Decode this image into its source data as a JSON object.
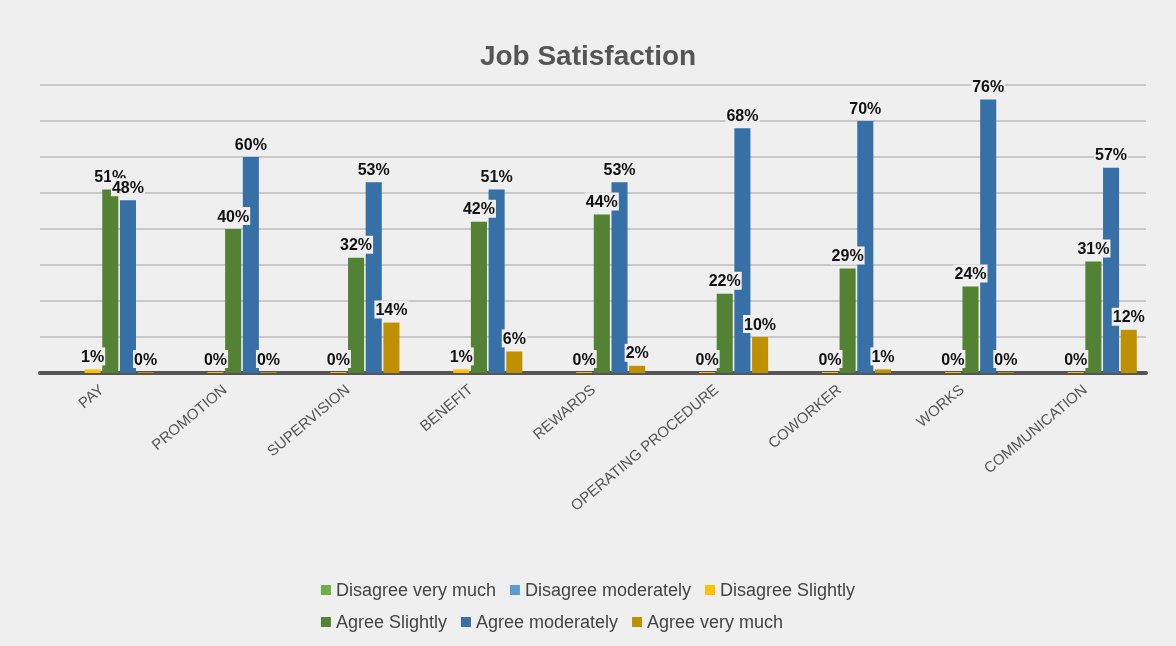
{
  "chart_data": {
    "type": "bar",
    "title": "Job Satisfaction",
    "categories": [
      "PAY",
      "PROMOTION",
      "SUPERVISION",
      "BENEFIT",
      "REWARDS",
      "OPERATING PROCEDURE",
      "COWORKER",
      "WORKS",
      "COMMUNICATION"
    ],
    "series": [
      {
        "name": "Disagree very much",
        "color": "#70ad47",
        "values": [
          null,
          null,
          null,
          null,
          null,
          null,
          null,
          null,
          null
        ]
      },
      {
        "name": "Disagree moderately",
        "color": "#5b9bd5",
        "values": [
          null,
          null,
          null,
          null,
          null,
          null,
          null,
          null,
          null
        ]
      },
      {
        "name": "Disagree Slightly",
        "color": "#ffc000",
        "values": [
          1,
          0,
          0,
          1,
          0,
          0,
          0,
          0,
          0
        ],
        "value_labels": [
          "1%",
          "0%",
          "0%",
          "1%",
          "0%",
          "0%",
          "0%",
          "0%",
          "0%"
        ]
      },
      {
        "name": "Agree Slightly",
        "color": "#548235",
        "values": [
          51,
          40,
          32,
          42,
          44,
          22,
          29,
          24,
          31
        ],
        "value_labels": [
          "51%",
          "40%",
          "32%",
          "42%",
          "44%",
          "22%",
          "29%",
          "24%",
          "31%"
        ]
      },
      {
        "name": "Agree moderately",
        "color": "#3670a6",
        "values": [
          48,
          60,
          53,
          51,
          53,
          68,
          70,
          76,
          57
        ],
        "value_labels": [
          "48%",
          "60%",
          "53%",
          "51%",
          "53%",
          "68%",
          "70%",
          "76%",
          "57%"
        ]
      },
      {
        "name": "Agree very much",
        "color": "#bf9000",
        "values": [
          0,
          0,
          14,
          6,
          2,
          10,
          1,
          0,
          12
        ],
        "value_labels": [
          "0%",
          "0%",
          "14%",
          "6%",
          "2%",
          "10%",
          "1%",
          "0%",
          "12%"
        ]
      }
    ],
    "ylim": [
      0,
      80
    ],
    "yticks": [
      {
        "value": 0,
        "label": null
      },
      {
        "value": 10,
        "label": null
      },
      {
        "value": 20,
        "label": null
      },
      {
        "value": 30,
        "label": null
      },
      {
        "value": 40,
        "label": null
      },
      {
        "value": 50,
        "label": null
      },
      {
        "value": 60,
        "label": null
      },
      {
        "value": 70,
        "label": null
      },
      {
        "value": 80,
        "label": null
      }
    ],
    "tick_labels": "x",
    "grid": "y",
    "legend": "bottom"
  }
}
